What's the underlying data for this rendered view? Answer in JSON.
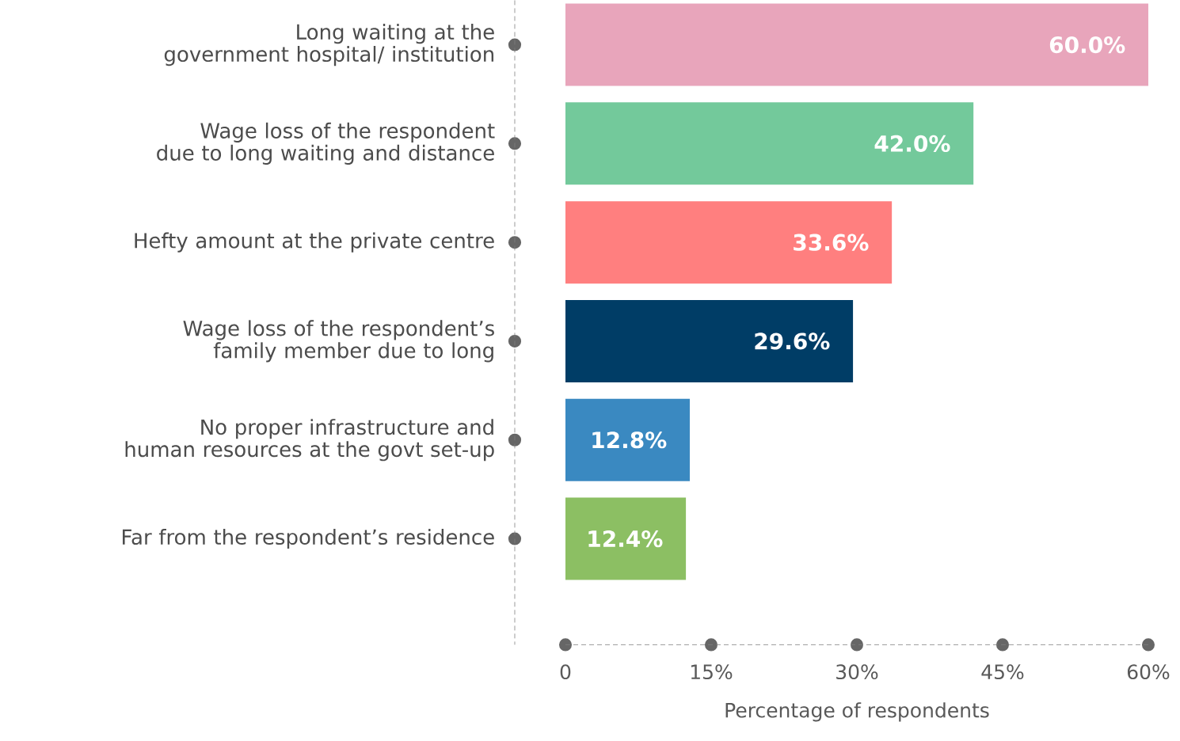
{
  "chart_data": {
    "type": "bar",
    "orientation": "horizontal",
    "xlabel": "Percentage of respondents",
    "categories": [
      "Long waiting at the government hospital/ institution",
      "Wage loss of the respondent due to long waiting and distance",
      "Hefty amount at the private centre",
      "Wage loss of the respondent’s family member due to long",
      "No proper infrastructure and human resources at the govt set-up",
      "Far from the respondent’s residence"
    ],
    "values": [
      60.0,
      42.0,
      33.6,
      29.6,
      12.8,
      12.4
    ],
    "value_labels": [
      "60.0%",
      "42.0%",
      "33.6%",
      "29.6%",
      "12.8%",
      "12.4%"
    ],
    "colors": [
      "#e8a5bb",
      "#73c99b",
      "#ff7f7f",
      "#003d66",
      "#3a89c1",
      "#8cbf63"
    ],
    "xlim": [
      0,
      60
    ],
    "xticks": [
      0,
      {
        "value": 15,
        "label": "15%"
      },
      {
        "value": 30,
        "label": "30%"
      },
      {
        "value": 45,
        "label": "45%"
      },
      {
        "value": 60,
        "label": "60%"
      }
    ],
    "grid": false
  }
}
